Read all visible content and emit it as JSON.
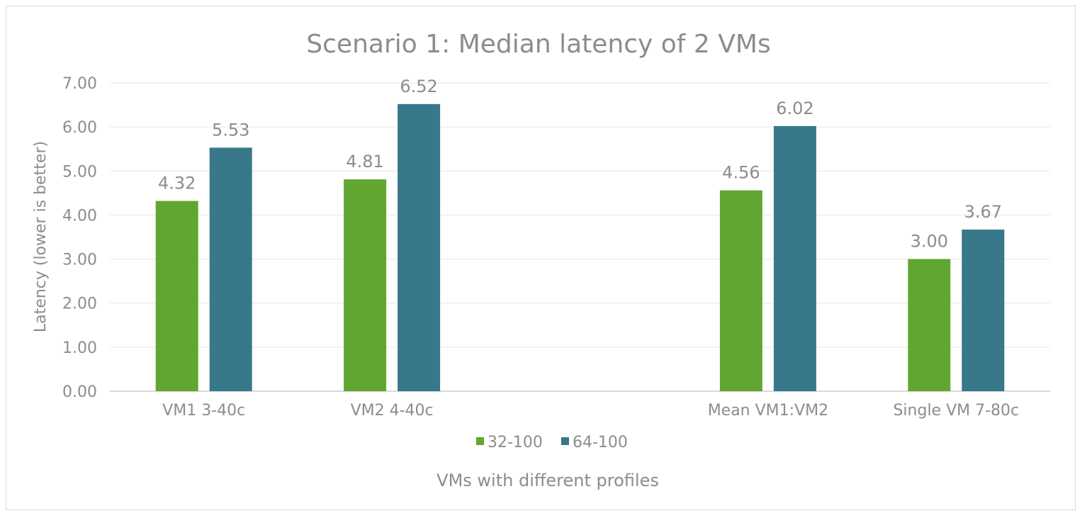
{
  "chart_data": {
    "type": "bar",
    "title": "Scenario 1: Median latency of 2 VMs",
    "xlabel": "VMs with different profiles",
    "ylabel": "Latency (lower is better)",
    "categories": [
      "VM1 3-40c",
      "VM2 4-40c",
      "",
      "Mean VM1:VM2",
      "Single VM 7-80c"
    ],
    "series": [
      {
        "name": "32-100",
        "color": "#62a632",
        "values": [
          4.32,
          4.81,
          null,
          4.56,
          3.0
        ]
      },
      {
        "name": "64-100",
        "color": "#37788a",
        "values": [
          5.53,
          6.52,
          null,
          6.02,
          3.67
        ]
      }
    ],
    "ylim": [
      0,
      7
    ],
    "yticks": [
      "0.00",
      "1.00",
      "2.00",
      "3.00",
      "4.00",
      "5.00",
      "6.00",
      "7.00"
    ],
    "grid": true,
    "legend": "bottom",
    "data_labels": true
  }
}
